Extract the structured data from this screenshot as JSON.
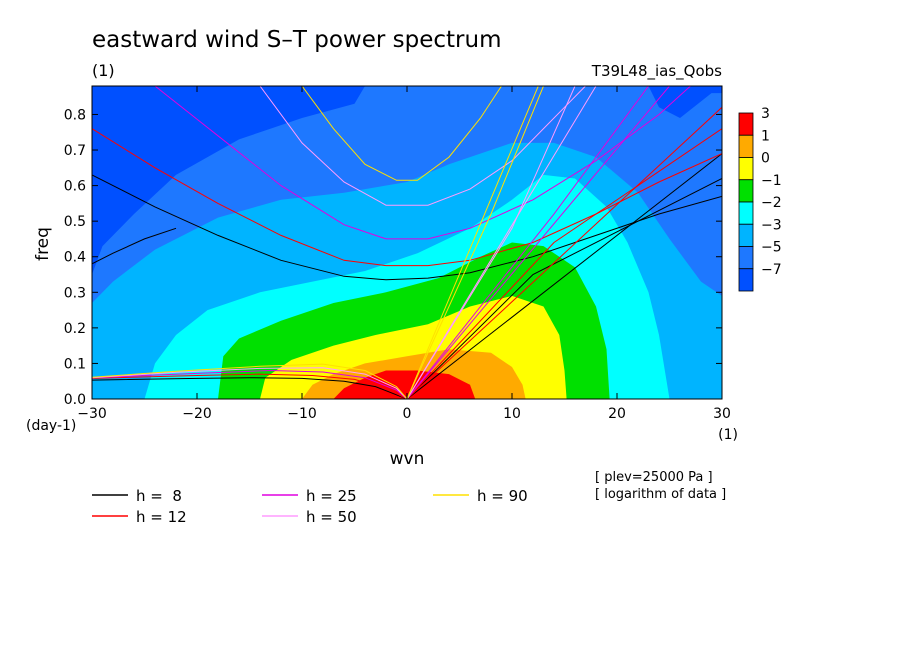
{
  "chart_data": {
    "type": "heatmap",
    "title": "eastward wind S–T power spectrum",
    "subtitle": "(1)",
    "run_label": "T39L48_ias_Qobs",
    "xlabel": "wvn",
    "ylabel": "freq",
    "x_unit_label": "(1)",
    "y_unit_label": "(day-1)",
    "xlim": [
      -30,
      30
    ],
    "ylim": [
      0.0,
      0.88
    ],
    "x_ticks": [
      -30,
      -20,
      -10,
      0,
      10,
      20,
      30
    ],
    "x_tick_labels": [
      "−30",
      "−20",
      "−10",
      "0",
      "10",
      "20",
      "30"
    ],
    "y_ticks": [
      0.0,
      0.1,
      0.2,
      0.3,
      0.4,
      0.5,
      0.6,
      0.7,
      0.8
    ],
    "y_tick_labels": [
      "0.0",
      "0.1",
      "0.2",
      "0.3",
      "0.4",
      "0.5",
      "0.6",
      "0.7",
      "0.8"
    ],
    "contour_levels": [
      {
        "label": "3",
        "color": "#ff0000"
      },
      {
        "label": "1",
        "color": "#ffaa00"
      },
      {
        "label": "0",
        "color": "#ffff00"
      },
      {
        "label": "−1",
        "color": "#00e000"
      },
      {
        "label": "−2",
        "color": "#00ffff"
      },
      {
        "label": "−3",
        "color": "#00b4ff"
      },
      {
        "label": "−5",
        "color": "#1e78ff"
      },
      {
        "label": "−7",
        "color": "#0050ff"
      }
    ],
    "field_contours": [
      {
        "band": "−5",
        "color": "#1e78ff",
        "points": [
          [
            -30,
            0.35
          ],
          [
            -29,
            0.43
          ],
          [
            -26,
            0.52
          ],
          [
            -22,
            0.63
          ],
          [
            -16,
            0.73
          ],
          [
            -10,
            0.79
          ],
          [
            -5,
            0.83
          ],
          [
            -4,
            0.88
          ],
          [
            23,
            0.88
          ],
          [
            24,
            0.82
          ],
          [
            26,
            0.79
          ],
          [
            29,
            0.86
          ],
          [
            30,
            0.86
          ],
          [
            30,
            0.0
          ],
          [
            -30,
            0.0
          ]
        ]
      },
      {
        "band": "−3",
        "color": "#00b4ff",
        "points": [
          [
            -30,
            0.27
          ],
          [
            -28,
            0.33
          ],
          [
            -24,
            0.42
          ],
          [
            -18,
            0.51
          ],
          [
            -12,
            0.56
          ],
          [
            -6,
            0.58
          ],
          [
            0,
            0.61
          ],
          [
            4,
            0.66
          ],
          [
            10,
            0.72
          ],
          [
            14,
            0.72
          ],
          [
            18,
            0.68
          ],
          [
            22,
            0.58
          ],
          [
            25,
            0.45
          ],
          [
            28,
            0.33
          ],
          [
            30,
            0.29
          ],
          [
            30,
            0.0
          ],
          [
            -30,
            0.0
          ]
        ]
      },
      {
        "band": "−2",
        "color": "#00ffff",
        "points": [
          [
            -25,
            0.0
          ],
          [
            -24,
            0.1
          ],
          [
            -22,
            0.18
          ],
          [
            -19,
            0.25
          ],
          [
            -14,
            0.3
          ],
          [
            -9,
            0.33
          ],
          [
            -4,
            0.36
          ],
          [
            1,
            0.41
          ],
          [
            6,
            0.48
          ],
          [
            10,
            0.56
          ],
          [
            13,
            0.63
          ],
          [
            16,
            0.62
          ],
          [
            19,
            0.54
          ],
          [
            21,
            0.44
          ],
          [
            23,
            0.3
          ],
          [
            24,
            0.18
          ],
          [
            25,
            0.0
          ]
        ]
      },
      {
        "band": "−1",
        "color": "#00e000",
        "points": [
          [
            -18,
            0.0
          ],
          [
            -17.5,
            0.12
          ],
          [
            -16,
            0.17
          ],
          [
            -12,
            0.22
          ],
          [
            -7,
            0.27
          ],
          [
            -2,
            0.3
          ],
          [
            3,
            0.34
          ],
          [
            7,
            0.4
          ],
          [
            10,
            0.44
          ],
          [
            13,
            0.43
          ],
          [
            16,
            0.37
          ],
          [
            18,
            0.26
          ],
          [
            19,
            0.14
          ],
          [
            19.3,
            0.0
          ]
        ]
      },
      {
        "band": "0",
        "color": "#ffff00",
        "points": [
          [
            -14,
            0.0
          ],
          [
            -13.5,
            0.06
          ],
          [
            -11,
            0.11
          ],
          [
            -7,
            0.15
          ],
          [
            -3,
            0.18
          ],
          [
            2,
            0.21
          ],
          [
            6,
            0.26
          ],
          [
            10,
            0.29
          ],
          [
            13,
            0.26
          ],
          [
            14.5,
            0.18
          ],
          [
            15,
            0.08
          ],
          [
            15.2,
            0.0
          ]
        ]
      },
      {
        "band": "1",
        "color": "#ffaa00",
        "points": [
          [
            -10,
            0.0
          ],
          [
            -9,
            0.04
          ],
          [
            -7,
            0.07
          ],
          [
            -4,
            0.1
          ],
          [
            0,
            0.12
          ],
          [
            4,
            0.14
          ],
          [
            8,
            0.13
          ],
          [
            10,
            0.09
          ],
          [
            11,
            0.04
          ],
          [
            11.3,
            0.0
          ]
        ]
      },
      {
        "band": "3",
        "color": "#ff0000",
        "points": [
          [
            -7,
            0.0
          ],
          [
            -6,
            0.03
          ],
          [
            -4,
            0.06
          ],
          [
            -2,
            0.08
          ],
          [
            1,
            0.08
          ],
          [
            4,
            0.07
          ],
          [
            6,
            0.04
          ],
          [
            6.5,
            0.0
          ]
        ]
      }
    ],
    "series": [
      {
        "name": "h =  8",
        "color": "#000000"
      },
      {
        "name": "h = 12",
        "color": "#ff0000"
      },
      {
        "name": "h = 25",
        "color": "#e000e0"
      },
      {
        "name": "h = 50",
        "color": "#ff9cff"
      },
      {
        "name": "h = 90",
        "color": "#ffe000"
      }
    ],
    "dispersion_curves": [
      {
        "series": 0,
        "kind": "n1-gravity",
        "points": [
          [
            -30,
            0.63
          ],
          [
            -24,
            0.54
          ],
          [
            -18,
            0.46
          ],
          [
            -12,
            0.39
          ],
          [
            -6,
            0.345
          ],
          [
            -2,
            0.335
          ],
          [
            2,
            0.34
          ],
          [
            6,
            0.355
          ],
          [
            12,
            0.4
          ],
          [
            18,
            0.46
          ],
          [
            24,
            0.52
          ],
          [
            30,
            0.57
          ]
        ]
      },
      {
        "series": 0,
        "kind": "n0-gravity",
        "points": [
          [
            -30,
            0.38
          ],
          [
            -28,
            0.41
          ],
          [
            -25,
            0.45
          ],
          [
            -22,
            0.48
          ]
        ]
      },
      {
        "series": 0,
        "kind": "kelvin",
        "points": [
          [
            0,
            0.0
          ],
          [
            30,
            0.69
          ]
        ]
      },
      {
        "series": 0,
        "kind": "mrg-east",
        "points": [
          [
            0,
            0.0
          ],
          [
            12,
            0.35
          ],
          [
            30,
            0.62
          ]
        ]
      },
      {
        "series": 0,
        "kind": "rossby",
        "points": [
          [
            -30,
            0.053
          ],
          [
            -20,
            0.058
          ],
          [
            -15,
            0.06
          ],
          [
            -10,
            0.058
          ],
          [
            -6,
            0.05
          ],
          [
            -3,
            0.035
          ],
          [
            0,
            0.0
          ]
        ]
      },
      {
        "series": 1,
        "kind": "n1-gravity",
        "points": [
          [
            -30,
            0.76
          ],
          [
            -24,
            0.65
          ],
          [
            -18,
            0.55
          ],
          [
            -12,
            0.46
          ],
          [
            -6,
            0.39
          ],
          [
            -2,
            0.375
          ],
          [
            2,
            0.375
          ],
          [
            6,
            0.39
          ],
          [
            12,
            0.44
          ],
          [
            18,
            0.52
          ],
          [
            24,
            0.61
          ],
          [
            30,
            0.69
          ]
        ]
      },
      {
        "series": 1,
        "kind": "kelvin",
        "points": [
          [
            0,
            0.0
          ],
          [
            30,
            0.82
          ]
        ]
      },
      {
        "series": 1,
        "kind": "mrg-east",
        "points": [
          [
            0,
            0.0
          ],
          [
            14,
            0.44
          ],
          [
            30,
            0.76
          ]
        ]
      },
      {
        "series": 1,
        "kind": "rossby",
        "points": [
          [
            -30,
            0.058
          ],
          [
            -20,
            0.066
          ],
          [
            -14,
            0.07
          ],
          [
            -9,
            0.066
          ],
          [
            -5,
            0.055
          ],
          [
            -2,
            0.03
          ],
          [
            0,
            0.0
          ]
        ]
      },
      {
        "series": 2,
        "kind": "n1-gravity",
        "points": [
          [
            -24,
            0.88
          ],
          [
            -18,
            0.74
          ],
          [
            -12,
            0.6
          ],
          [
            -6,
            0.49
          ],
          [
            -2,
            0.45
          ],
          [
            2,
            0.45
          ],
          [
            6,
            0.48
          ],
          [
            12,
            0.56
          ],
          [
            18,
            0.67
          ],
          [
            24,
            0.8
          ],
          [
            27,
            0.88
          ]
        ]
      },
      {
        "series": 2,
        "kind": "kelvin",
        "points": [
          [
            0,
            0.0
          ],
          [
            25,
            0.88
          ]
        ]
      },
      {
        "series": 2,
        "kind": "mrg-east",
        "points": [
          [
            0,
            0.0
          ],
          [
            14,
            0.52
          ],
          [
            23,
            0.88
          ]
        ]
      },
      {
        "series": 2,
        "kind": "rossby",
        "points": [
          [
            -30,
            0.06
          ],
          [
            -20,
            0.072
          ],
          [
            -13,
            0.08
          ],
          [
            -8,
            0.076
          ],
          [
            -4,
            0.06
          ],
          [
            -1,
            0.025
          ],
          [
            0,
            0.0
          ]
        ]
      },
      {
        "series": 3,
        "kind": "n1-gravity",
        "points": [
          [
            -14,
            0.88
          ],
          [
            -10,
            0.72
          ],
          [
            -6,
            0.61
          ],
          [
            -2,
            0.545
          ],
          [
            2,
            0.545
          ],
          [
            6,
            0.59
          ],
          [
            10,
            0.67
          ],
          [
            15,
            0.82
          ],
          [
            17,
            0.88
          ]
        ]
      },
      {
        "series": 3,
        "kind": "kelvin",
        "points": [
          [
            0,
            0.0
          ],
          [
            18,
            0.88
          ]
        ]
      },
      {
        "series": 3,
        "kind": "mrg-east",
        "points": [
          [
            0,
            0.0
          ],
          [
            10,
            0.48
          ],
          [
            16,
            0.88
          ]
        ]
      },
      {
        "series": 3,
        "kind": "rossby",
        "points": [
          [
            -30,
            0.06
          ],
          [
            -22,
            0.075
          ],
          [
            -14,
            0.086
          ],
          [
            -8,
            0.088
          ],
          [
            -4,
            0.07
          ],
          [
            -1,
            0.03
          ],
          [
            0,
            0.0
          ]
        ]
      },
      {
        "series": 4,
        "kind": "n1-gravity",
        "points": [
          [
            -10,
            0.88
          ],
          [
            -7,
            0.76
          ],
          [
            -4,
            0.66
          ],
          [
            -1,
            0.615
          ],
          [
            1,
            0.615
          ],
          [
            4,
            0.68
          ],
          [
            7,
            0.79
          ],
          [
            9,
            0.88
          ]
        ]
      },
      {
        "series": 4,
        "kind": "kelvin",
        "points": [
          [
            0,
            0.0
          ],
          [
            12.5,
            0.88
          ]
        ]
      },
      {
        "series": 4,
        "kind": "mrg-east",
        "points": [
          [
            0,
            0.0
          ],
          [
            8,
            0.52
          ],
          [
            13,
            0.88
          ]
        ]
      },
      {
        "series": 4,
        "kind": "rossby",
        "points": [
          [
            -30,
            0.061
          ],
          [
            -22,
            0.078
          ],
          [
            -14,
            0.092
          ],
          [
            -8,
            0.098
          ],
          [
            -4,
            0.08
          ],
          [
            -1,
            0.035
          ],
          [
            0,
            0.0
          ]
        ]
      }
    ],
    "annotations": [
      "[ plev=25000 Pa ]",
      "[ logarithm of data ]"
    ],
    "legend_position": "bottom",
    "grid": false
  }
}
